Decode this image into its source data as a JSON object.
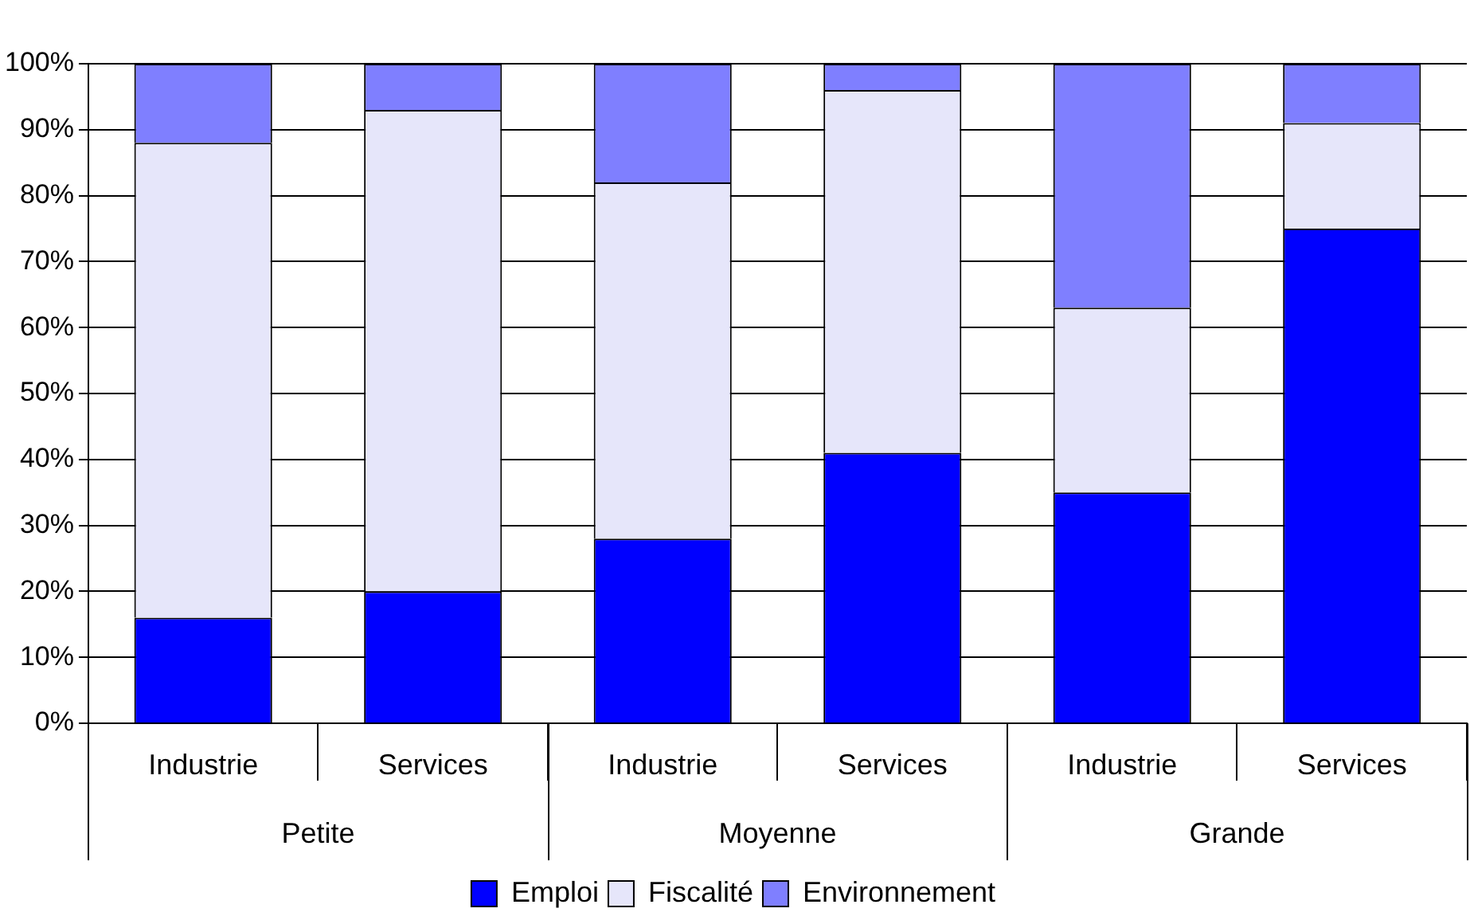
{
  "chart_data": {
    "type": "bar",
    "stacked": true,
    "categories": [
      "Industrie",
      "Services",
      "Industrie",
      "Services",
      "Industrie",
      "Services"
    ],
    "annotations": [
      "Petite",
      "Moyenne",
      "Grande"
    ],
    "series": [
      {
        "name": "Emploi",
        "color": "#0000ff",
        "values": [
          16,
          20,
          28,
          41,
          35,
          75
        ]
      },
      {
        "name": "Fiscalité",
        "color": "#e6e6fa",
        "values": [
          72,
          73,
          54,
          55,
          28,
          16
        ]
      },
      {
        "name": "Environnement",
        "color": "#7f7fff",
        "values": [
          12,
          7,
          18,
          4,
          37,
          9
        ]
      }
    ],
    "ylim": [
      0,
      100
    ],
    "yticks": [
      {
        "value": 0,
        "label": "0%"
      },
      {
        "value": 10,
        "label": "10%"
      },
      {
        "value": 20,
        "label": "20%"
      },
      {
        "value": 30,
        "label": "30%"
      },
      {
        "value": 40,
        "label": "40%"
      },
      {
        "value": 50,
        "label": "50%"
      },
      {
        "value": 60,
        "label": "60%"
      },
      {
        "value": 70,
        "label": "70%"
      },
      {
        "value": 80,
        "label": "80%"
      },
      {
        "value": 90,
        "label": "90%"
      },
      {
        "value": 100,
        "label": "100%"
      }
    ],
    "grid": "y",
    "legend": "bottom"
  }
}
